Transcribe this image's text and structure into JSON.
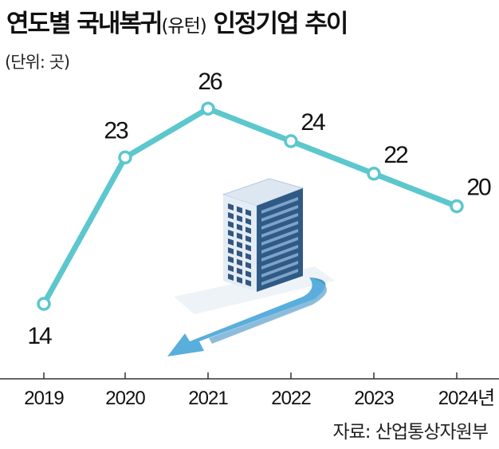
{
  "title": {
    "main": "연도별 국내복귀",
    "paren": "(유턴)",
    "rest": "인정기업 추이"
  },
  "unit_label": "(단위: 곳)",
  "source": "자료: 산업통상자원부",
  "colors": {
    "line": "#5cc7cd",
    "marker_fill": "#ffffff",
    "axis": "#333333",
    "building_light": "#dfe8f2",
    "building_window": "#33577f",
    "arrow": "#5aaedb"
  },
  "chart_data": {
    "type": "line",
    "title": "연도별 국내복귀(유턴) 인정기업 추이",
    "ylabel": "(단위: 곳)",
    "categories": [
      "2019",
      "2020",
      "2021",
      "2022",
      "2023",
      "2024년"
    ],
    "values": [
      14,
      23,
      26,
      24,
      22,
      20
    ],
    "ylim": [
      10,
      30
    ],
    "grid": false,
    "legend": "none"
  }
}
